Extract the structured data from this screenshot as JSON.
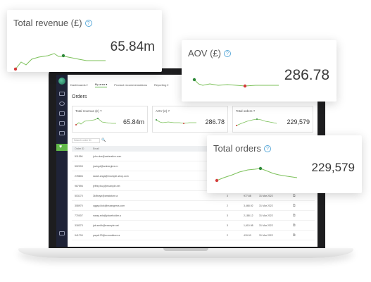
{
  "colors": {
    "line": "#7cc15a",
    "start_dot": "#d43b3b",
    "peak_dot": "#2f8a3a",
    "sidebar": "#1f2337",
    "accent": "#62b84a"
  },
  "cards": {
    "revenue": {
      "title": "Total revenue (£)",
      "value": "65.84m",
      "info_icon": "?"
    },
    "aov": {
      "title": "AOV (£)",
      "value": "286.78",
      "info_icon": "?"
    },
    "orders": {
      "title": "Total orders",
      "value": "229,579",
      "info_icon": "?"
    }
  },
  "app": {
    "nav": [
      "Dashboards ▾",
      "My area ▾",
      "Product recommendations",
      "Reporting ▾"
    ],
    "title": "Orders",
    "sidebar_active_icon": "♥",
    "mini_cards": {
      "revenue": {
        "title": "Total revenue (£) ?",
        "value": "65.84m"
      },
      "aov": {
        "title": "AOV (£) ?",
        "value": "286.78"
      },
      "orders": {
        "title": "Total orders ?",
        "value": "229,579"
      }
    },
    "search": {
      "placeholder": "Search order ID",
      "icon": "🔍"
    },
    "table": {
      "headers": {
        "id": "Order ID",
        "email": "Email"
      },
      "rows": [
        {
          "id": "511266",
          "email": "john.doe@webnative.com",
          "qty": "",
          "total": "",
          "date": ""
        },
        {
          "id": "502203",
          "email": "juvingd@ambergbre.m",
          "qty": "",
          "total": "",
          "date": ""
        },
        {
          "id": "278806",
          "email": "sarah.anga@example-shop.com",
          "qty": "",
          "total": "",
          "date": ""
        },
        {
          "id": "967596",
          "email": "jeffrey.buy@example.net",
          "qty": "",
          "total": "",
          "date": ""
        },
        {
          "id": "503170",
          "email": "3k9boyb@amidstore.a",
          "qty": "3",
          "total": "977.88",
          "date": "31 Mar 2022"
        },
        {
          "id": "308970",
          "email": "oggsp.kiok@maasgeros.com",
          "qty": "2",
          "total": "3,468.92",
          "date": "31 Mar 2022"
        },
        {
          "id": "770007",
          "email": "nassy.eds@placeholder.a",
          "qty": "3",
          "total": "2,188.12",
          "date": "31 Mar 2022"
        },
        {
          "id": "318373",
          "email": "jab.smith@example.net",
          "qty": "3",
          "total": "1,610.98",
          "date": "31 Mar 2022"
        },
        {
          "id": "941700",
          "email": "papa123@ecmedstore.a",
          "qty": "2",
          "total": "419.90",
          "date": "31 Mar 2022"
        }
      ]
    }
  }
}
